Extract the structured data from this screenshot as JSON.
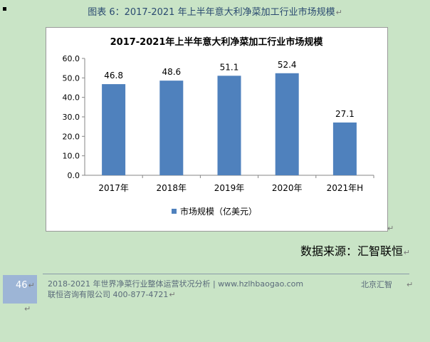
{
  "caption": "图表 6：2017-2021 年上半年意大利净菜加工行业市场规模",
  "paragraph_mark": "↵",
  "chart_data": {
    "type": "bar",
    "title": "2017-2021年上半年意大利净菜加工行业市场规模",
    "categories": [
      "2017年",
      "2018年",
      "2019年",
      "2020年",
      "2021年H"
    ],
    "series": [
      {
        "name": "市场规模（亿美元）",
        "values": [
          46.8,
          48.6,
          51.1,
          52.4,
          27.1
        ],
        "color": "#4f81bd"
      }
    ],
    "data_labels": [
      "46.8",
      "48.6",
      "51.1",
      "52.4",
      "27.1"
    ],
    "yticks": [
      "0.0",
      "10.0",
      "20.0",
      "30.0",
      "40.0",
      "50.0",
      "60.0"
    ],
    "ylim": [
      0,
      60
    ],
    "legend": "bottom",
    "grid": false
  },
  "source": "数据来源：汇智联恒",
  "footer": {
    "page_number": "46",
    "line1": "2018-2021 年世界净菜行业整体运营状况分析 | www.hzlhbaogao.com",
    "right": "北京汇智",
    "line2": "联恒咨询有限公司  400-877-4721"
  }
}
